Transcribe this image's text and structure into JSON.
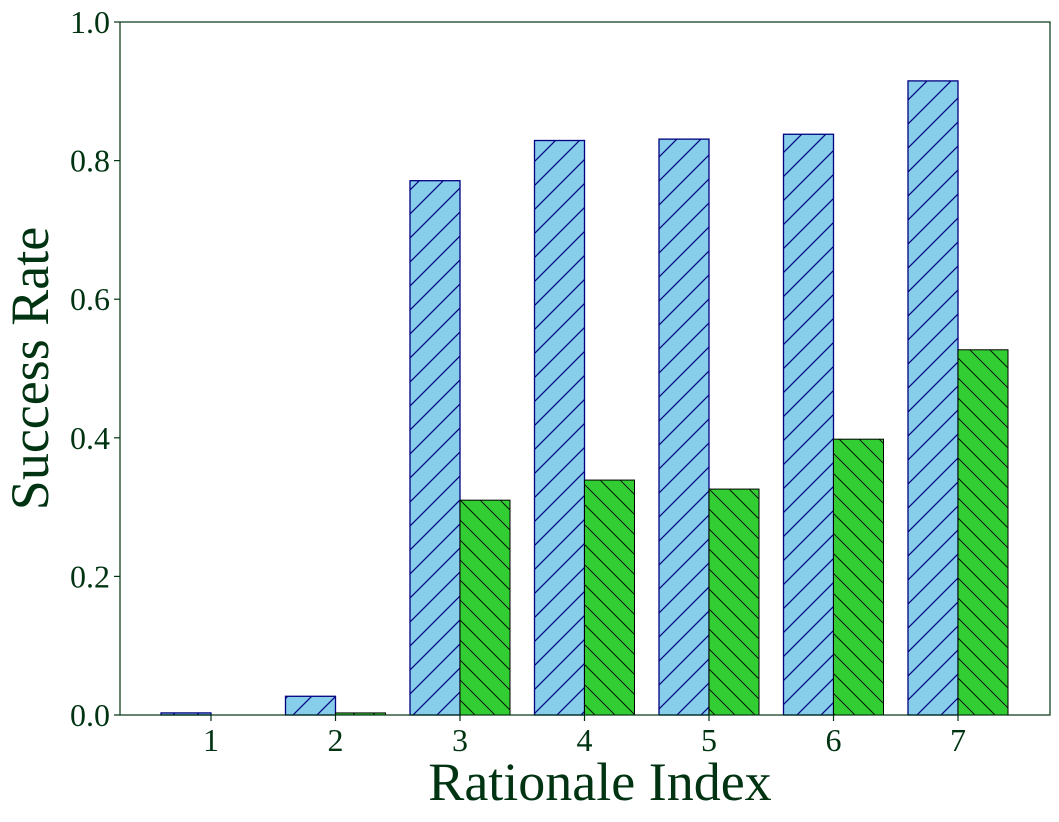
{
  "chart_data": {
    "type": "bar",
    "title": "",
    "xlabel": "Rationale Index",
    "ylabel": "Success Rate",
    "categories": [
      "1",
      "2",
      "3",
      "4",
      "5",
      "6",
      "7"
    ],
    "series": [
      {
        "values": [
          0.003,
          0.027,
          0.771,
          0.829,
          0.831,
          0.838,
          0.915
        ],
        "color": "#87CEEB",
        "edge_color": "#000080",
        "hatch": "forward-diagonal"
      },
      {
        "values": [
          0.0,
          0.003,
          0.31,
          0.339,
          0.326,
          0.398,
          0.527
        ],
        "color": "#32CD32",
        "edge_color": "#000000",
        "hatch": "back-diagonal"
      }
    ],
    "ylim": [
      0,
      1.0
    ],
    "yticks": [
      "0.0",
      "0.2",
      "0.4",
      "0.6",
      "0.8",
      "1.0"
    ],
    "text_color": "#003311",
    "grid": false,
    "legend": "none"
  }
}
